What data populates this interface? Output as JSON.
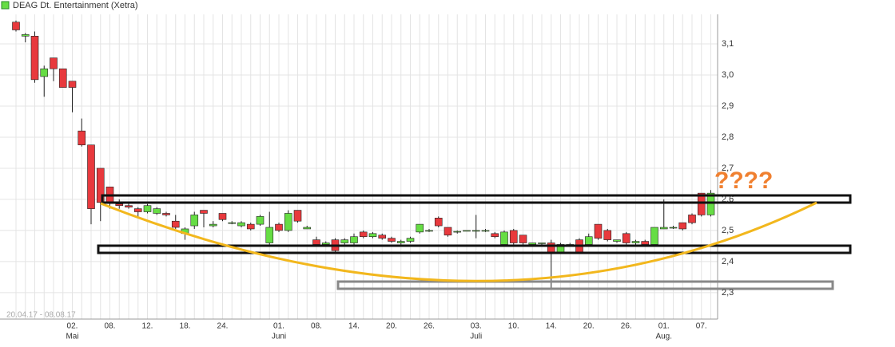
{
  "chart_data": {
    "type": "candlestick",
    "title": "DEAG Dt. Entertainment (Xetra)",
    "date_range": "20.04.17 - 08.08.17",
    "annotation": "????",
    "up_color": "#66dd44",
    "down_color": "#e8393d",
    "grid": true,
    "ylim": [
      2.215,
      3.195
    ],
    "yticks": [
      {
        "value": 2.3,
        "label": "2,3"
      },
      {
        "value": 2.4,
        "label": "2,4"
      },
      {
        "value": 2.5,
        "label": "2,5"
      },
      {
        "value": 2.6,
        "label": "2,6"
      },
      {
        "value": 2.7,
        "label": "2,7"
      },
      {
        "value": 2.8,
        "label": "2,8"
      },
      {
        "value": 2.9,
        "label": "2,9"
      },
      {
        "value": 3.0,
        "label": "3,0"
      },
      {
        "value": 3.1,
        "label": "3,1"
      }
    ],
    "categories": [
      null,
      null,
      null,
      null,
      null,
      null,
      "02.",
      null,
      null,
      null,
      "08.",
      null,
      null,
      null,
      "12.",
      null,
      null,
      null,
      "18.",
      null,
      null,
      null,
      "24.",
      null,
      null,
      null,
      null,
      null,
      "01.",
      null,
      null,
      null,
      "08.",
      null,
      null,
      null,
      "14.",
      null,
      null,
      null,
      "20.",
      null,
      null,
      null,
      "26.",
      null,
      null,
      null,
      null,
      "03.",
      null,
      null,
      null,
      "10.",
      null,
      null,
      null,
      "14.",
      null,
      null,
      null,
      "20.",
      null,
      null,
      null,
      "26.",
      null,
      null,
      null,
      "01.",
      null,
      null,
      null,
      "07.",
      null
    ],
    "month_categories": [
      null,
      null,
      null,
      null,
      null,
      null,
      "Mai",
      null,
      null,
      null,
      null,
      null,
      null,
      null,
      null,
      null,
      null,
      null,
      null,
      null,
      null,
      null,
      null,
      null,
      null,
      null,
      null,
      null,
      "Juni",
      null,
      null,
      null,
      null,
      null,
      null,
      null,
      null,
      null,
      null,
      null,
      null,
      null,
      null,
      null,
      null,
      null,
      null,
      null,
      null,
      "Juli",
      null,
      null,
      null,
      null,
      null,
      null,
      null,
      null,
      null,
      null,
      null,
      null,
      null,
      null,
      null,
      null,
      null,
      null,
      null,
      "Aug.",
      null,
      null,
      null,
      null,
      null
    ],
    "open": [
      3.17,
      3.125,
      3.125,
      2.995,
      3.055,
      3.02,
      2.98,
      2.82,
      2.775,
      2.7,
      2.64,
      2.585,
      2.58,
      2.57,
      2.56,
      2.555,
      2.555,
      2.53,
      2.49,
      2.515,
      2.565,
      2.515,
      2.555,
      2.525,
      2.515,
      2.52,
      2.52,
      2.46,
      2.52,
      2.5,
      2.565,
      2.505,
      2.47,
      2.455,
      2.47,
      2.46,
      2.46,
      2.495,
      2.48,
      2.485,
      2.475,
      2.46,
      2.465,
      2.495,
      2.5,
      2.54,
      2.51,
      2.495,
      2.5,
      2.5,
      2.5,
      2.49,
      2.455,
      2.5,
      2.485,
      2.455,
      2.46,
      2.46,
      2.43,
      2.455,
      2.47,
      2.455,
      2.52,
      2.5,
      2.465,
      2.49,
      2.46,
      2.465,
      2.455,
      2.505,
      2.51,
      2.525,
      2.55,
      2.62,
      2.55
    ],
    "high": [
      3.175,
      3.135,
      3.14,
      3.03,
      3.055,
      3.02,
      2.98,
      2.86,
      2.775,
      2.7,
      2.64,
      2.6,
      2.59,
      2.575,
      2.585,
      2.575,
      2.56,
      2.55,
      2.51,
      2.56,
      2.565,
      2.53,
      2.555,
      2.53,
      2.53,
      2.525,
      2.55,
      2.56,
      2.525,
      2.565,
      2.565,
      2.515,
      2.48,
      2.465,
      2.475,
      2.475,
      2.49,
      2.5,
      2.495,
      2.49,
      2.48,
      2.47,
      2.48,
      2.52,
      2.505,
      2.545,
      2.51,
      2.5,
      2.5,
      2.55,
      2.505,
      2.495,
      2.5,
      2.505,
      2.485,
      2.46,
      2.46,
      2.47,
      2.46,
      2.46,
      2.475,
      2.49,
      2.52,
      2.505,
      2.47,
      2.495,
      2.47,
      2.47,
      2.51,
      2.6,
      2.515,
      2.525,
      2.555,
      2.62,
      2.63
    ],
    "low": [
      3.14,
      3.105,
      2.975,
      2.93,
      2.98,
      2.96,
      2.88,
      2.77,
      2.52,
      2.53,
      2.57,
      2.57,
      2.57,
      2.54,
      2.555,
      2.55,
      2.545,
      2.505,
      2.47,
      2.505,
      2.51,
      2.51,
      2.53,
      2.52,
      2.51,
      2.5,
      2.515,
      2.455,
      2.495,
      2.495,
      2.525,
      2.505,
      2.45,
      2.45,
      2.43,
      2.455,
      2.455,
      2.475,
      2.475,
      2.47,
      2.46,
      2.455,
      2.46,
      2.49,
      2.495,
      2.51,
      2.48,
      2.49,
      2.5,
      2.475,
      2.495,
      2.475,
      2.455,
      2.455,
      2.455,
      2.45,
      2.455,
      2.31,
      2.43,
      2.45,
      2.43,
      2.455,
      2.47,
      2.465,
      2.46,
      2.455,
      2.455,
      2.45,
      2.455,
      2.505,
      2.505,
      2.5,
      2.52,
      2.545,
      2.545
    ],
    "close": [
      3.145,
      3.13,
      2.985,
      3.02,
      3.02,
      2.96,
      2.96,
      2.775,
      2.57,
      2.59,
      2.59,
      2.58,
      2.575,
      2.56,
      2.58,
      2.57,
      2.55,
      2.51,
      2.505,
      2.55,
      2.555,
      2.52,
      2.535,
      2.525,
      2.525,
      2.505,
      2.545,
      2.51,
      2.5,
      2.555,
      2.53,
      2.51,
      2.455,
      2.46,
      2.435,
      2.47,
      2.48,
      2.48,
      2.49,
      2.475,
      2.465,
      2.465,
      2.475,
      2.52,
      2.5,
      2.515,
      2.485,
      2.497,
      2.5,
      2.5,
      2.5,
      2.48,
      2.495,
      2.46,
      2.46,
      2.46,
      2.46,
      2.43,
      2.455,
      2.455,
      2.43,
      2.48,
      2.475,
      2.47,
      2.47,
      2.46,
      2.465,
      2.455,
      2.51,
      2.51,
      2.51,
      2.505,
      2.525,
      2.55,
      2.62
    ]
  }
}
